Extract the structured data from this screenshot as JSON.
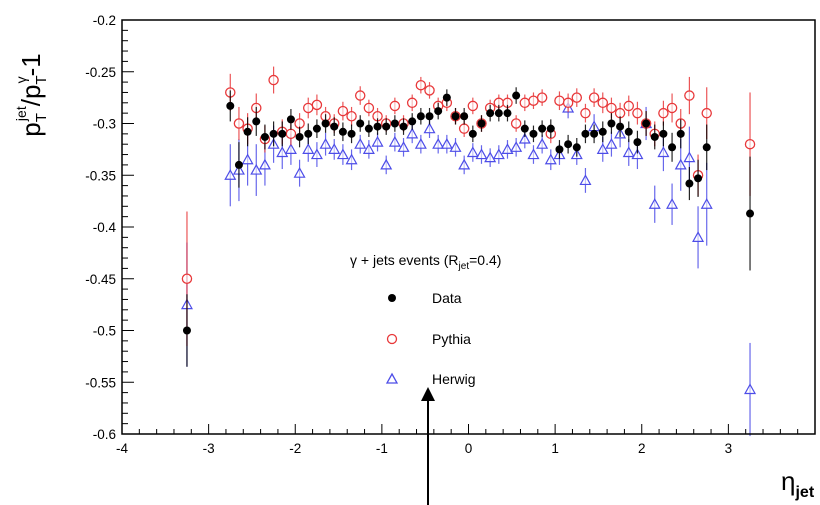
{
  "chart_data": {
    "type": "scatter",
    "title": "",
    "xlabel": {
      "main": "η",
      "sub": "jet"
    },
    "ylabel": {
      "p": "p",
      "sub1": "T",
      "sup1": "jet",
      "slash": "/p",
      "sub2": "T",
      "sup2": "γ",
      "tail": "-1"
    },
    "xlim": [
      -4,
      4
    ],
    "ylim": [
      -0.6,
      -0.2
    ],
    "x_ticks": [
      "-4",
      "-3",
      "-2",
      "-1",
      "0",
      "1",
      "2",
      "3"
    ],
    "x_tick_values": [
      -4,
      -3,
      -2,
      -1,
      0,
      1,
      2,
      3
    ],
    "y_ticks": [
      "-0.2",
      "-0.25",
      "-0.3",
      "-0.35",
      "-0.4",
      "-0.45",
      "-0.5",
      "-0.55",
      "-0.6"
    ],
    "y_tick_values": [
      -0.2,
      -0.25,
      -0.3,
      -0.35,
      -0.4,
      -0.45,
      -0.5,
      -0.55,
      -0.6
    ],
    "grid": false,
    "legend": {
      "placement": "center",
      "title": {
        "pre": "γ + jets events (R",
        "sub": "jet",
        "post": "=0.4)"
      },
      "entries": [
        "Data",
        "Pythia",
        "Herwig"
      ]
    },
    "colors": {
      "Data": "#000000",
      "Pythia": "#e8383a",
      "Herwig": "#4d4de8",
      "frame": "#000000"
    },
    "series": [
      {
        "name": "Data",
        "marker": "filled-circle",
        "points": [
          [
            -3.25,
            -0.5,
            0.035
          ],
          [
            -2.75,
            -0.283,
            0.015
          ],
          [
            -2.65,
            -0.34,
            0.022
          ],
          [
            -2.55,
            -0.308,
            0.014
          ],
          [
            -2.45,
            -0.298,
            0.014
          ],
          [
            -2.35,
            -0.313,
            0.012
          ],
          [
            -2.25,
            -0.31,
            0.012
          ],
          [
            -2.15,
            -0.31,
            0.012
          ],
          [
            -2.05,
            -0.296,
            0.01
          ],
          [
            -1.95,
            -0.313,
            0.01
          ],
          [
            -1.85,
            -0.31,
            0.01
          ],
          [
            -1.75,
            -0.305,
            0.009
          ],
          [
            -1.65,
            -0.3,
            0.009
          ],
          [
            -1.55,
            -0.303,
            0.009
          ],
          [
            -1.45,
            -0.308,
            0.009
          ],
          [
            -1.35,
            -0.31,
            0.009
          ],
          [
            -1.25,
            -0.3,
            0.008
          ],
          [
            -1.15,
            -0.305,
            0.008
          ],
          [
            -1.05,
            -0.303,
            0.008
          ],
          [
            -0.95,
            -0.303,
            0.008
          ],
          [
            -0.85,
            -0.3,
            0.008
          ],
          [
            -0.75,
            -0.303,
            0.008
          ],
          [
            -0.65,
            -0.298,
            0.008
          ],
          [
            -0.55,
            -0.293,
            0.008
          ],
          [
            -0.45,
            -0.293,
            0.008
          ],
          [
            -0.35,
            -0.288,
            0.008
          ],
          [
            -0.25,
            -0.275,
            0.008
          ],
          [
            -0.15,
            -0.293,
            0.008
          ],
          [
            -0.05,
            -0.293,
            0.008
          ],
          [
            0.05,
            -0.31,
            0.008
          ],
          [
            0.15,
            -0.3,
            0.008
          ],
          [
            0.25,
            -0.29,
            0.008
          ],
          [
            0.35,
            -0.29,
            0.008
          ],
          [
            0.45,
            -0.29,
            0.008
          ],
          [
            0.55,
            -0.273,
            0.008
          ],
          [
            0.65,
            -0.305,
            0.008
          ],
          [
            0.75,
            -0.31,
            0.008
          ],
          [
            0.85,
            -0.305,
            0.008
          ],
          [
            0.95,
            -0.305,
            0.009
          ],
          [
            1.05,
            -0.325,
            0.009
          ],
          [
            1.15,
            -0.32,
            0.009
          ],
          [
            1.25,
            -0.323,
            0.009
          ],
          [
            1.35,
            -0.31,
            0.009
          ],
          [
            1.45,
            -0.31,
            0.009
          ],
          [
            1.55,
            -0.308,
            0.01
          ],
          [
            1.65,
            -0.3,
            0.01
          ],
          [
            1.75,
            -0.303,
            0.01
          ],
          [
            1.85,
            -0.308,
            0.01
          ],
          [
            1.95,
            -0.318,
            0.011
          ],
          [
            2.05,
            -0.3,
            0.012
          ],
          [
            2.15,
            -0.313,
            0.012
          ],
          [
            2.25,
            -0.31,
            0.012
          ],
          [
            2.35,
            -0.323,
            0.014
          ],
          [
            2.45,
            -0.31,
            0.014
          ],
          [
            2.55,
            -0.358,
            0.016
          ],
          [
            2.65,
            -0.353,
            0.018
          ],
          [
            2.75,
            -0.323,
            0.022
          ],
          [
            3.25,
            -0.387,
            0.055
          ]
        ]
      },
      {
        "name": "Pythia",
        "marker": "open-circle",
        "points": [
          [
            -3.25,
            -0.45,
            0.065
          ],
          [
            -2.75,
            -0.27,
            0.018
          ],
          [
            -2.65,
            -0.3,
            0.016
          ],
          [
            -2.55,
            -0.305,
            0.015
          ],
          [
            -2.45,
            -0.285,
            0.014
          ],
          [
            -2.35,
            -0.315,
            0.013
          ],
          [
            -2.25,
            -0.258,
            0.013
          ],
          [
            -2.15,
            -0.308,
            0.012
          ],
          [
            -2.05,
            -0.31,
            0.011
          ],
          [
            -1.95,
            -0.3,
            0.01
          ],
          [
            -1.85,
            -0.285,
            0.01
          ],
          [
            -1.75,
            -0.282,
            0.01
          ],
          [
            -1.65,
            -0.293,
            0.009
          ],
          [
            -1.55,
            -0.3,
            0.009
          ],
          [
            -1.45,
            -0.288,
            0.009
          ],
          [
            -1.35,
            -0.293,
            0.009
          ],
          [
            -1.25,
            -0.273,
            0.009
          ],
          [
            -1.15,
            -0.285,
            0.008
          ],
          [
            -1.05,
            -0.293,
            0.008
          ],
          [
            -0.95,
            -0.3,
            0.008
          ],
          [
            -0.85,
            -0.283,
            0.008
          ],
          [
            -0.75,
            -0.3,
            0.008
          ],
          [
            -0.65,
            -0.28,
            0.008
          ],
          [
            -0.55,
            -0.263,
            0.008
          ],
          [
            -0.45,
            -0.268,
            0.008
          ],
          [
            -0.35,
            -0.283,
            0.008
          ],
          [
            -0.25,
            -0.28,
            0.008
          ],
          [
            -0.15,
            -0.293,
            0.008
          ],
          [
            -0.05,
            -0.305,
            0.008
          ],
          [
            0.05,
            -0.283,
            0.008
          ],
          [
            0.15,
            -0.3,
            0.008
          ],
          [
            0.25,
            -0.285,
            0.008
          ],
          [
            0.35,
            -0.28,
            0.008
          ],
          [
            0.45,
            -0.28,
            0.008
          ],
          [
            0.55,
            -0.3,
            0.008
          ],
          [
            0.65,
            -0.28,
            0.008
          ],
          [
            0.75,
            -0.278,
            0.008
          ],
          [
            0.85,
            -0.275,
            0.008
          ],
          [
            0.95,
            -0.31,
            0.009
          ],
          [
            1.05,
            -0.278,
            0.009
          ],
          [
            1.15,
            -0.28,
            0.009
          ],
          [
            1.25,
            -0.275,
            0.009
          ],
          [
            1.35,
            -0.29,
            0.009
          ],
          [
            1.45,
            -0.275,
            0.009
          ],
          [
            1.55,
            -0.28,
            0.01
          ],
          [
            1.65,
            -0.285,
            0.01
          ],
          [
            1.75,
            -0.29,
            0.01
          ],
          [
            1.85,
            -0.283,
            0.01
          ],
          [
            1.95,
            -0.29,
            0.011
          ],
          [
            2.05,
            -0.3,
            0.012
          ],
          [
            2.15,
            -0.31,
            0.012
          ],
          [
            2.25,
            -0.29,
            0.012
          ],
          [
            2.35,
            -0.285,
            0.014
          ],
          [
            2.45,
            -0.3,
            0.014
          ],
          [
            2.55,
            -0.273,
            0.018
          ],
          [
            2.65,
            -0.35,
            0.02
          ],
          [
            2.75,
            -0.29,
            0.025
          ],
          [
            3.25,
            -0.32,
            0.05
          ]
        ]
      },
      {
        "name": "Herwig",
        "marker": "open-triangle",
        "points": [
          [
            -3.25,
            -0.475,
            0.06
          ],
          [
            -2.75,
            -0.35,
            0.03
          ],
          [
            -2.65,
            -0.345,
            0.03
          ],
          [
            -2.55,
            -0.335,
            0.025
          ],
          [
            -2.45,
            -0.345,
            0.025
          ],
          [
            -2.35,
            -0.34,
            0.02
          ],
          [
            -2.25,
            -0.32,
            0.018
          ],
          [
            -2.15,
            -0.328,
            0.016
          ],
          [
            -2.05,
            -0.325,
            0.015
          ],
          [
            -1.95,
            -0.348,
            0.013
          ],
          [
            -1.85,
            -0.325,
            0.012
          ],
          [
            -1.75,
            -0.33,
            0.012
          ],
          [
            -1.65,
            -0.32,
            0.011
          ],
          [
            -1.55,
            -0.325,
            0.01
          ],
          [
            -1.45,
            -0.33,
            0.01
          ],
          [
            -1.35,
            -0.335,
            0.01
          ],
          [
            -1.25,
            -0.32,
            0.009
          ],
          [
            -1.15,
            -0.325,
            0.009
          ],
          [
            -1.05,
            -0.318,
            0.009
          ],
          [
            -0.95,
            -0.34,
            0.009
          ],
          [
            -0.85,
            -0.318,
            0.009
          ],
          [
            -0.75,
            -0.323,
            0.009
          ],
          [
            -0.65,
            -0.31,
            0.009
          ],
          [
            -0.55,
            -0.32,
            0.009
          ],
          [
            -0.45,
            -0.305,
            0.009
          ],
          [
            -0.35,
            -0.32,
            0.009
          ],
          [
            -0.25,
            -0.32,
            0.009
          ],
          [
            -0.15,
            -0.323,
            0.009
          ],
          [
            -0.05,
            -0.34,
            0.009
          ],
          [
            0.05,
            -0.328,
            0.009
          ],
          [
            0.15,
            -0.33,
            0.009
          ],
          [
            0.25,
            -0.333,
            0.009
          ],
          [
            0.35,
            -0.33,
            0.009
          ],
          [
            0.45,
            -0.325,
            0.009
          ],
          [
            0.55,
            -0.323,
            0.009
          ],
          [
            0.65,
            -0.315,
            0.009
          ],
          [
            0.75,
            -0.33,
            0.009
          ],
          [
            0.85,
            -0.32,
            0.009
          ],
          [
            0.95,
            -0.335,
            0.01
          ],
          [
            1.05,
            -0.33,
            0.01
          ],
          [
            1.15,
            -0.285,
            0.01
          ],
          [
            1.25,
            -0.33,
            0.01
          ],
          [
            1.35,
            -0.355,
            0.012
          ],
          [
            1.45,
            -0.303,
            0.012
          ],
          [
            1.55,
            -0.325,
            0.012
          ],
          [
            1.65,
            -0.32,
            0.012
          ],
          [
            1.75,
            -0.31,
            0.013
          ],
          [
            1.85,
            -0.328,
            0.013
          ],
          [
            1.95,
            -0.33,
            0.014
          ],
          [
            2.05,
            -0.3,
            0.016
          ],
          [
            2.15,
            -0.378,
            0.018
          ],
          [
            2.25,
            -0.328,
            0.018
          ],
          [
            2.35,
            -0.378,
            0.02
          ],
          [
            2.45,
            -0.34,
            0.025
          ],
          [
            2.55,
            -0.333,
            0.03
          ],
          [
            2.65,
            -0.41,
            0.03
          ],
          [
            2.75,
            -0.378,
            0.04
          ],
          [
            3.25,
            -0.557,
            0.045
          ]
        ]
      }
    ],
    "annotation": {
      "type": "arrow",
      "direction": "up",
      "x": -0.6
    }
  }
}
